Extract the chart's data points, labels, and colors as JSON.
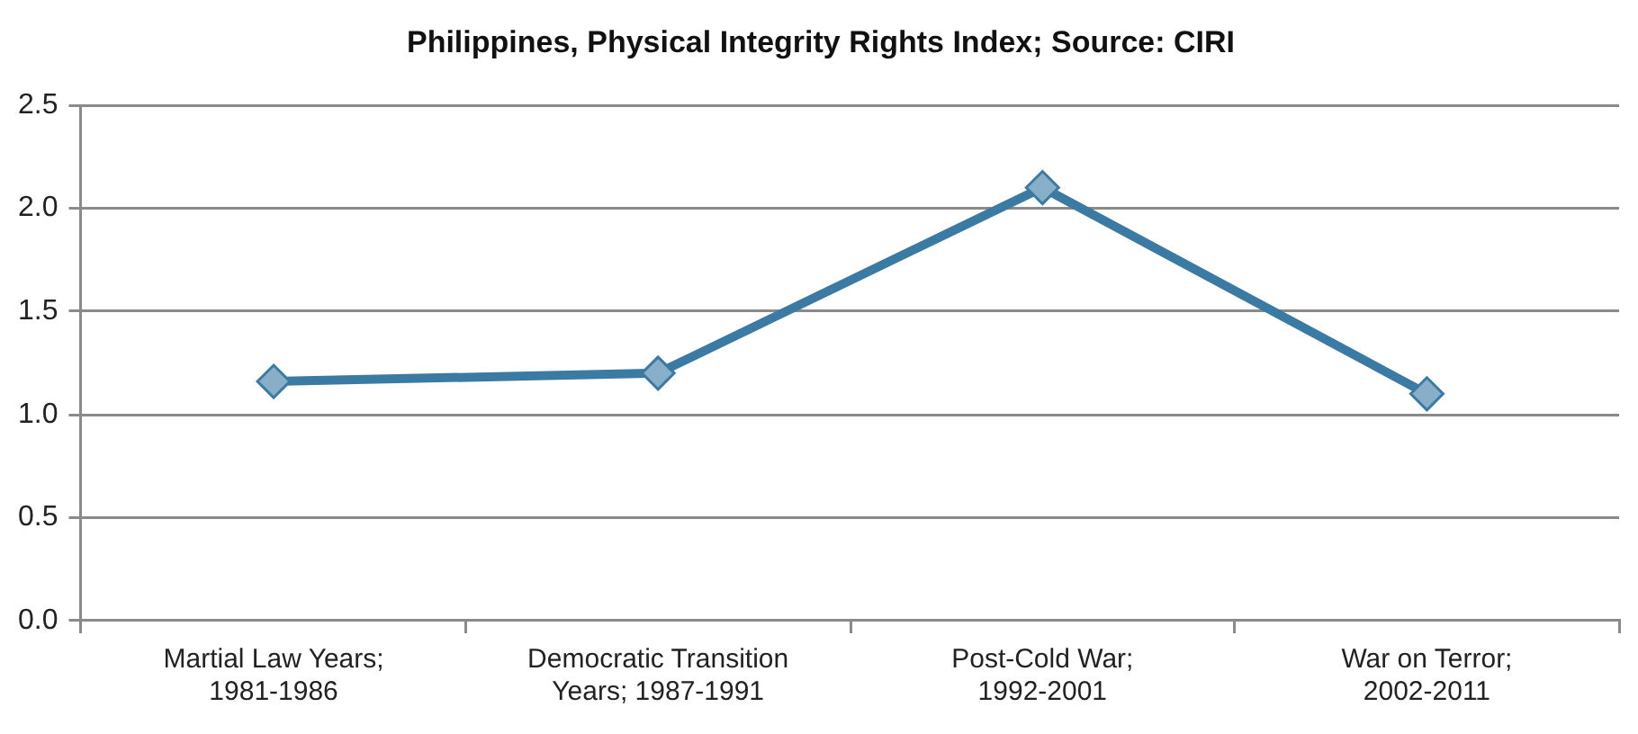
{
  "chart_data": {
    "type": "line",
    "title": "Philippines, Physical Integrity Rights Index; Source: CIRI",
    "categories": [
      "Martial Law Years; 1981-1986",
      "Democratic Transition Years; 1987-1991",
      "Post-Cold War; 1992-2001",
      "War on Terror; 2002-2011"
    ],
    "series": [
      {
        "color": "#3b7aa3",
        "values": [
          1.16,
          1.2,
          2.1,
          1.1
        ]
      }
    ],
    "ylim": [
      0,
      2.5
    ],
    "yticks": [
      {
        "value": 0,
        "label": "0.0"
      },
      0.5,
      {
        "value": 1,
        "label": "1.0"
      },
      1.5,
      {
        "value": 2,
        "label": "2.0"
      },
      2.5
    ],
    "grid": "y",
    "legend": false,
    "marker": "diamond",
    "line_style": "solid"
  }
}
